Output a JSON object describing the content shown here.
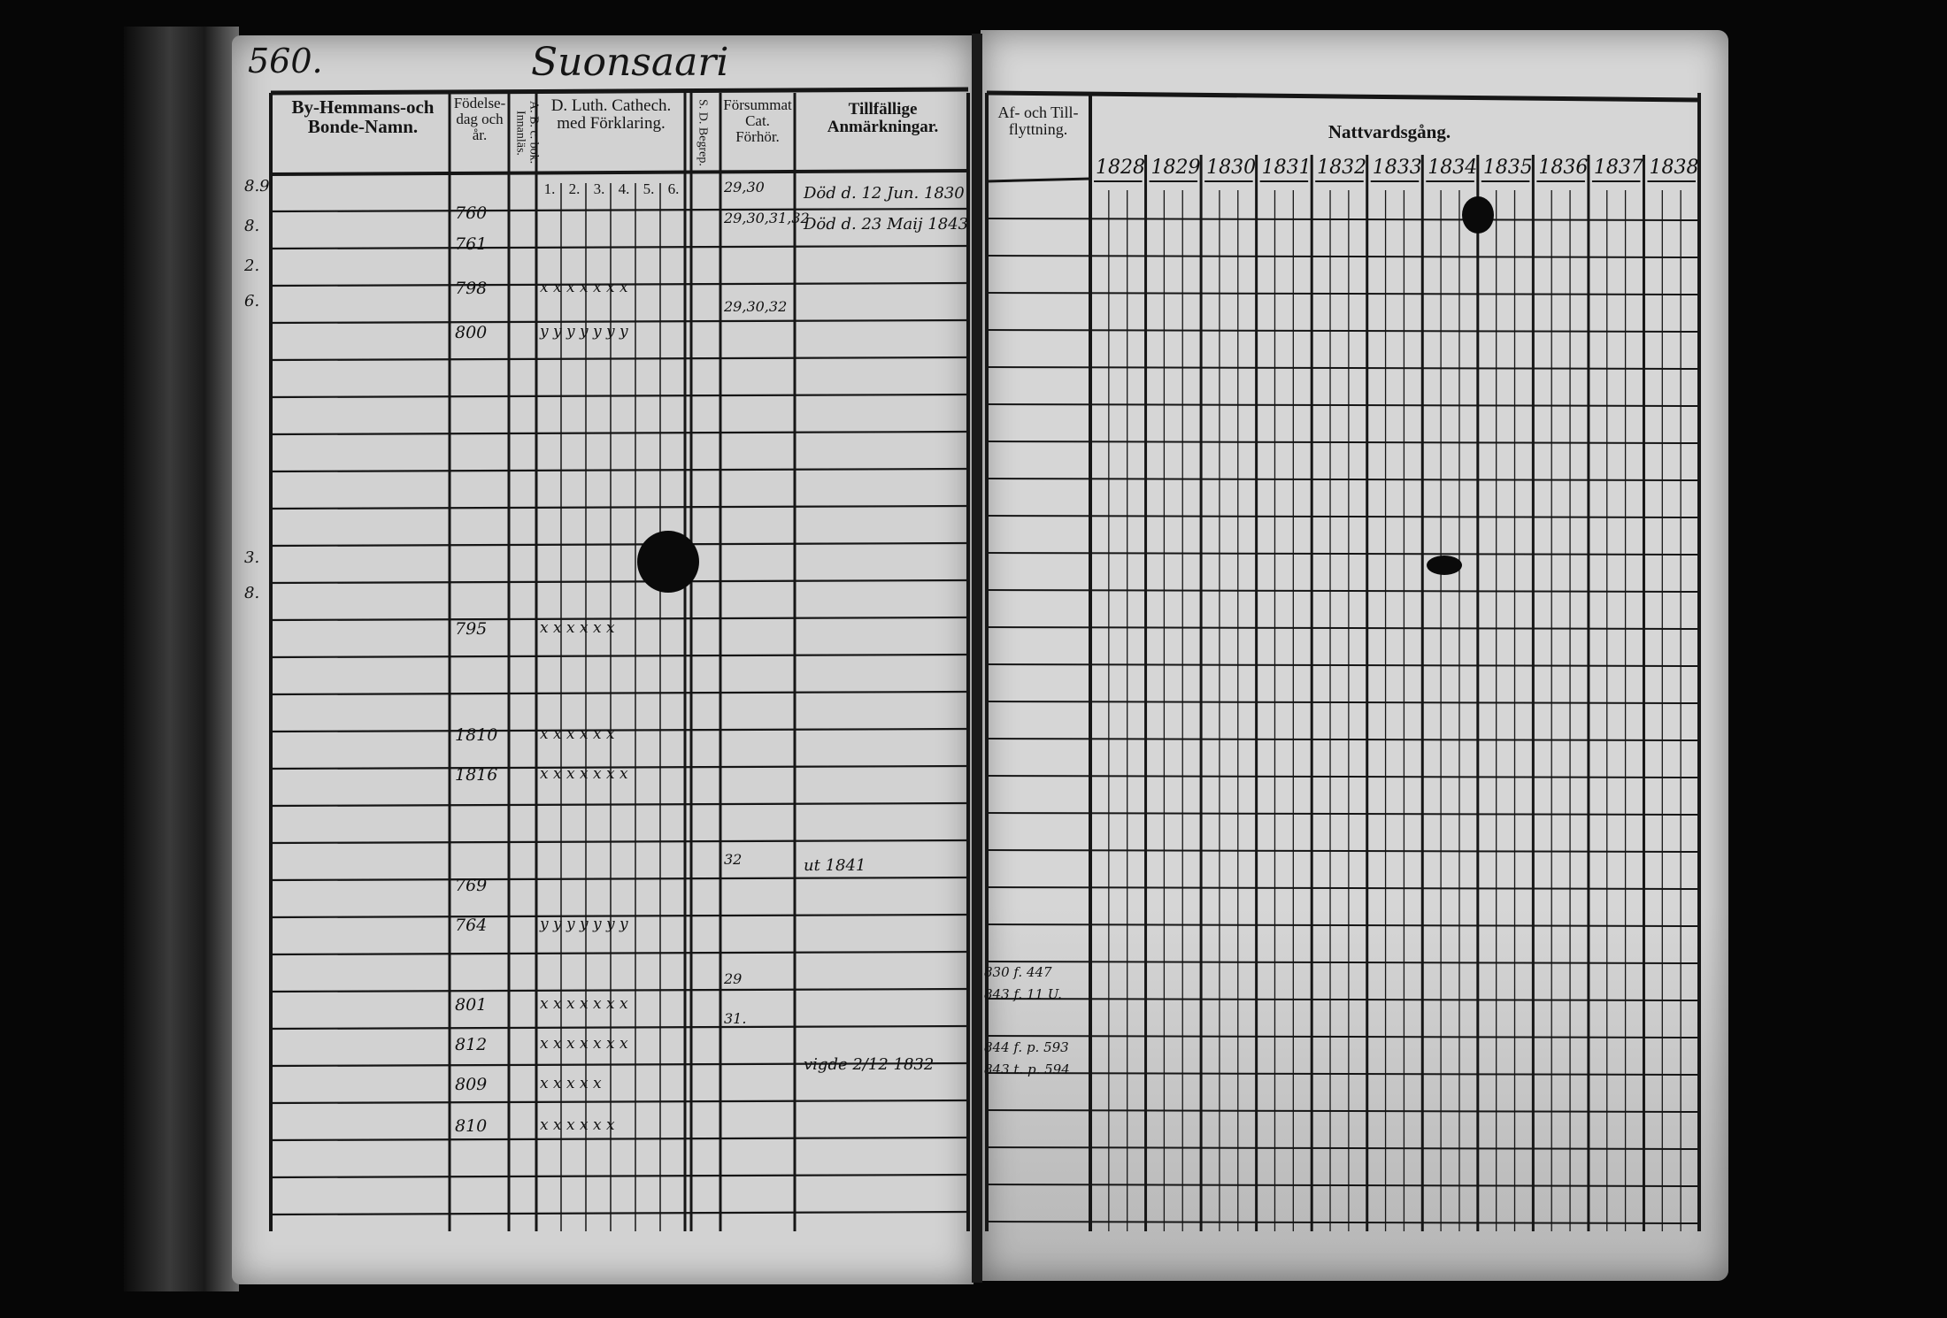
{
  "left_page": {
    "page_number": "560.",
    "village_title": "Suonsaari",
    "headers": {
      "name": "By-Hemmans-och Bonde-Namn.",
      "birth": "Födelse-dag och år.",
      "abc": "A. B. c. bok. Innanläs.",
      "catechism": "D. Luth. Cathech. med Förklaring.",
      "catechism_sub": [
        "1.",
        "2.",
        "3.",
        "4.",
        "5.",
        "6."
      ],
      "ds": "S. D. Begrep.",
      "missed": "Försummat Cat. Förhör.",
      "remarks": "Tillfällige Anmärkningar."
    },
    "row_marks": [
      "8.9",
      "8.",
      "2.",
      "6.",
      "3.",
      "8."
    ],
    "entries": [
      {
        "birth": "760",
        "missed": "29,30",
        "remarks": "Död d. 12 Jun. 1830"
      },
      {
        "birth": "761",
        "missed": "29,30,31,32",
        "remarks": "Död d. 23 Maij 1843"
      },
      {
        "birth": "798",
        "marks": "x x x x x x x"
      },
      {
        "birth": "800",
        "missed": "29,30,32",
        "marks": "y y y y y y y"
      },
      {
        "birth": "795",
        "marks": "x x x x x x"
      },
      {
        "birth": "1810",
        "marks": "x x x x x x"
      },
      {
        "birth": "1816",
        "marks": "x x x x x x x"
      },
      {
        "birth": "769",
        "missed": "32",
        "remarks": "ut 1841"
      },
      {
        "birth": "764",
        "marks": "y y y y y y y"
      },
      {
        "birth": "801",
        "missed": "29",
        "marks": "x x x x x x x"
      },
      {
        "birth": "812",
        "missed": "31.",
        "marks": "x x x x x x x"
      },
      {
        "birth": "809",
        "remarks": "vigde 2/12 1832",
        "marks": "x x x x x"
      },
      {
        "birth": "810",
        "marks": "x x x x x x"
      }
    ]
  },
  "right_page": {
    "headers": {
      "moves": "Af- och Till-flyttning.",
      "communion": "Nattvardsgång."
    },
    "years": [
      "1828",
      "1829",
      "1830",
      "1831",
      "1832",
      "1833",
      "1834",
      "1835",
      "1836",
      "1837",
      "1838"
    ],
    "move_notes": [
      "830 f. 447",
      "843 f. 11 U.",
      "844 f. p. 593",
      "843 t. p. 594"
    ]
  },
  "colors": {
    "paper": "#d2d2d2",
    "ink": "#151515",
    "background": "#060606"
  }
}
